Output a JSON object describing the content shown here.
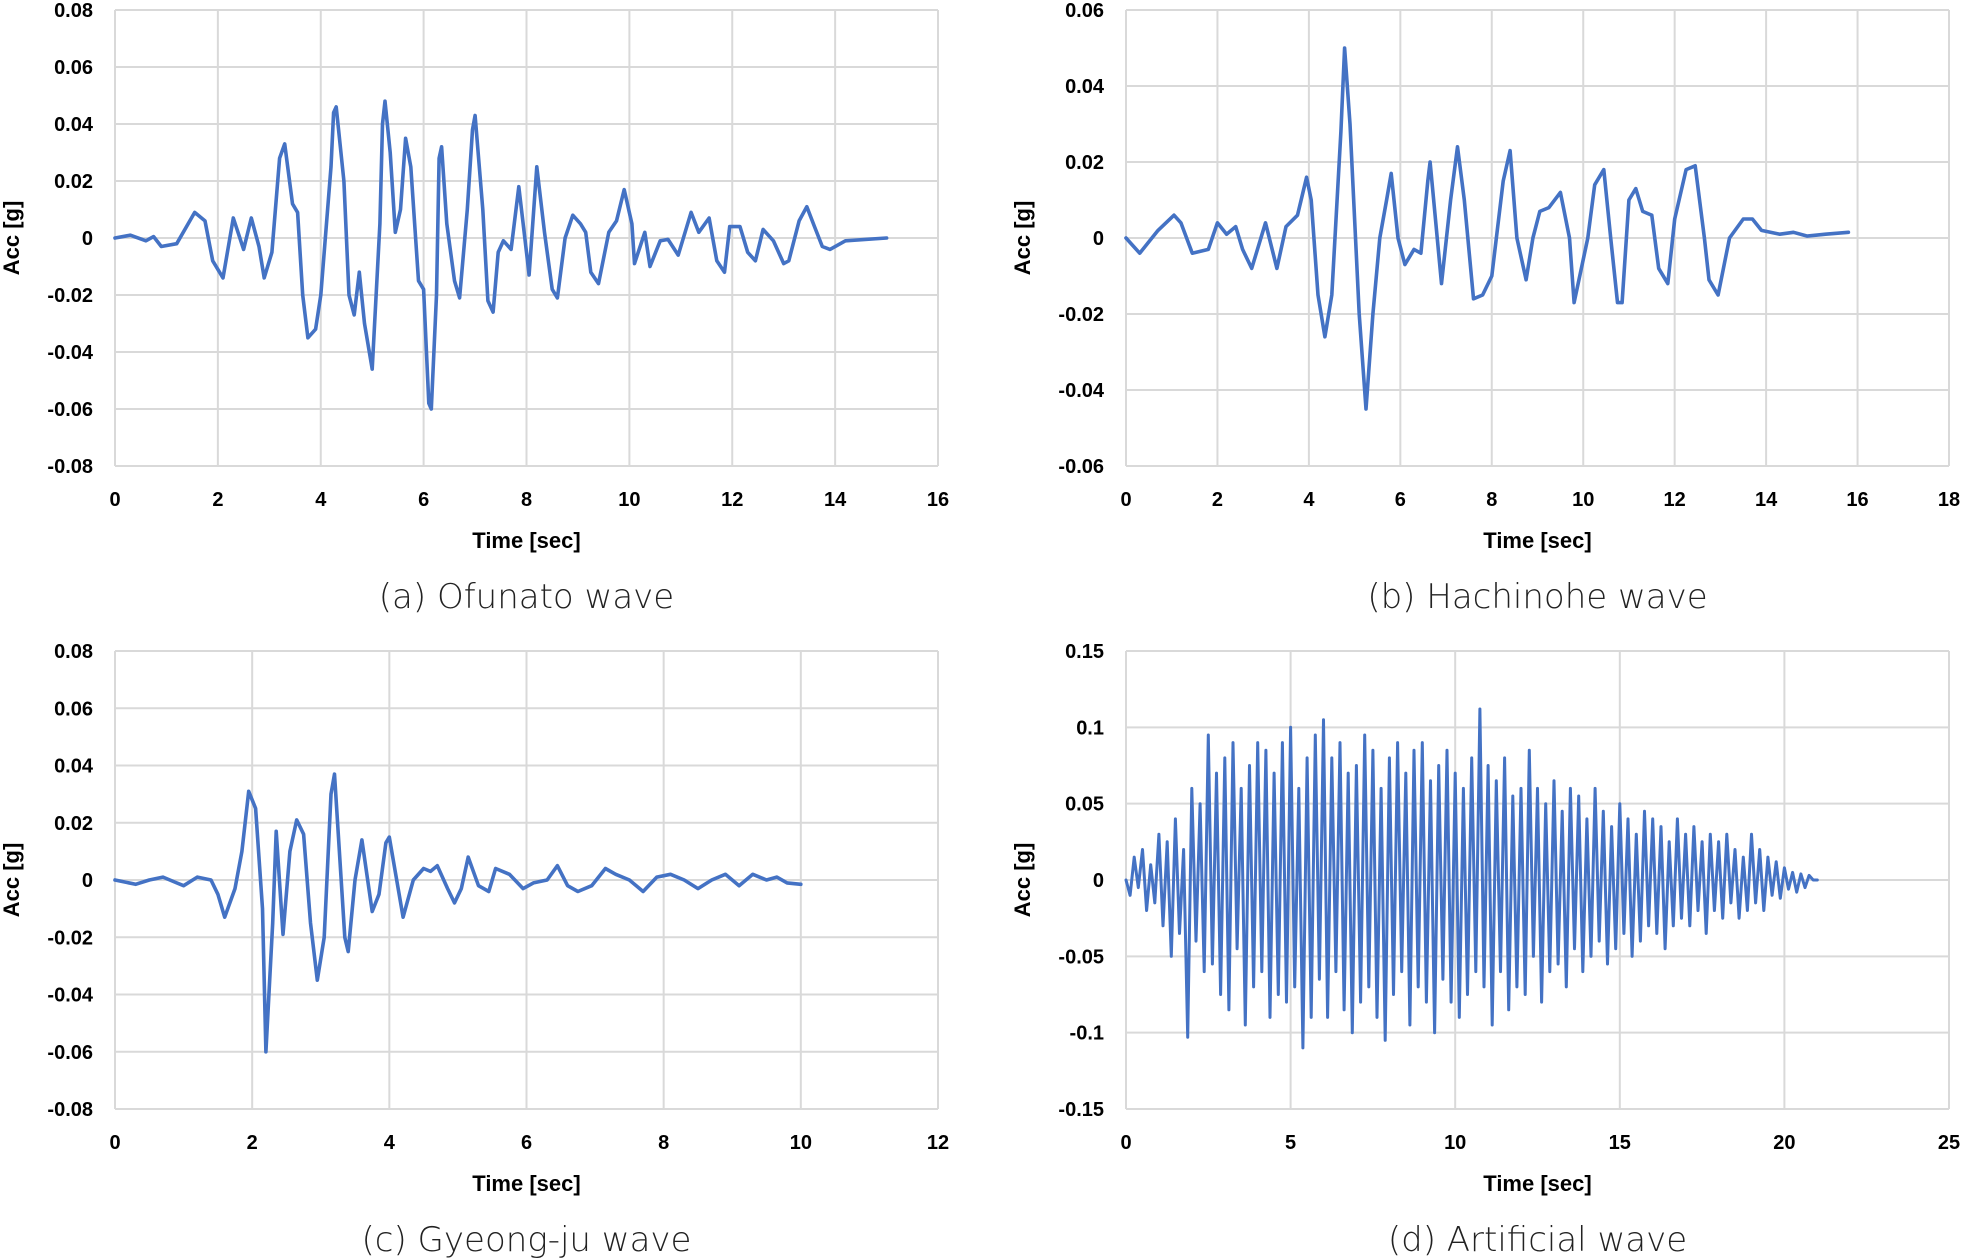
{
  "line_color": "#4472c4",
  "grid_color": "#d9d9d9",
  "chart_data": [
    {
      "type": "line",
      "caption": "(a) Ofunato wave",
      "xlabel": "Time [sec]",
      "ylabel": "Acc [g]",
      "xlim": [
        0,
        16
      ],
      "xstep": 2,
      "ylim": [
        -0.08,
        0.08
      ],
      "ystep": 0.02,
      "xticks": [
        "0",
        "2",
        "4",
        "6",
        "8",
        "10",
        "12",
        "14",
        "16"
      ],
      "yticks": [
        "-0.08",
        "-0.06",
        "-0.04",
        "-0.02",
        "0",
        "0.02",
        "0.04",
        "0.06",
        "0.08"
      ],
      "grid": true,
      "points": [
        [
          0,
          0
        ],
        [
          0.3,
          0.001
        ],
        [
          0.6,
          -0.001
        ],
        [
          0.75,
          0.0005
        ],
        [
          0.9,
          -0.003
        ],
        [
          1.2,
          -0.002
        ],
        [
          1.55,
          0.009
        ],
        [
          1.75,
          0.006
        ],
        [
          1.9,
          -0.008
        ],
        [
          2.1,
          -0.014
        ],
        [
          2.3,
          0.007
        ],
        [
          2.5,
          -0.004
        ],
        [
          2.65,
          0.007
        ],
        [
          2.8,
          -0.003
        ],
        [
          2.9,
          -0.014
        ],
        [
          3.05,
          -0.005
        ],
        [
          3.2,
          0.028
        ],
        [
          3.3,
          0.033
        ],
        [
          3.45,
          0.012
        ],
        [
          3.55,
          0.009
        ],
        [
          3.65,
          -0.02
        ],
        [
          3.75,
          -0.035
        ],
        [
          3.9,
          -0.032
        ],
        [
          4.0,
          -0.02
        ],
        [
          4.2,
          0.025
        ],
        [
          4.25,
          0.044
        ],
        [
          4.3,
          0.046
        ],
        [
          4.45,
          0.02
        ],
        [
          4.55,
          -0.02
        ],
        [
          4.65,
          -0.027
        ],
        [
          4.75,
          -0.012
        ],
        [
          4.85,
          -0.03
        ],
        [
          5.0,
          -0.046
        ],
        [
          5.15,
          0.005
        ],
        [
          5.2,
          0.04
        ],
        [
          5.25,
          0.048
        ],
        [
          5.35,
          0.03
        ],
        [
          5.45,
          0.002
        ],
        [
          5.55,
          0.01
        ],
        [
          5.65,
          0.035
        ],
        [
          5.75,
          0.025
        ],
        [
          5.9,
          -0.015
        ],
        [
          6.0,
          -0.018
        ],
        [
          6.1,
          -0.058
        ],
        [
          6.15,
          -0.06
        ],
        [
          6.25,
          -0.02
        ],
        [
          6.3,
          0.028
        ],
        [
          6.35,
          0.032
        ],
        [
          6.45,
          0.005
        ],
        [
          6.6,
          -0.015
        ],
        [
          6.7,
          -0.021
        ],
        [
          6.85,
          0.01
        ],
        [
          6.95,
          0.038
        ],
        [
          7.0,
          0.043
        ],
        [
          7.15,
          0.01
        ],
        [
          7.25,
          -0.022
        ],
        [
          7.35,
          -0.026
        ],
        [
          7.45,
          -0.005
        ],
        [
          7.55,
          -0.001
        ],
        [
          7.7,
          -0.004
        ],
        [
          7.85,
          0.018
        ],
        [
          8.0,
          -0.005
        ],
        [
          8.05,
          -0.013
        ],
        [
          8.2,
          0.025
        ],
        [
          8.35,
          0.002
        ],
        [
          8.5,
          -0.018
        ],
        [
          8.6,
          -0.021
        ],
        [
          8.75,
          0.0
        ],
        [
          8.9,
          0.008
        ],
        [
          9.05,
          0.005
        ],
        [
          9.15,
          0.002
        ],
        [
          9.25,
          -0.012
        ],
        [
          9.4,
          -0.016
        ],
        [
          9.6,
          0.002
        ],
        [
          9.75,
          0.006
        ],
        [
          9.9,
          0.017
        ],
        [
          10.05,
          0.005
        ],
        [
          10.1,
          -0.009
        ],
        [
          10.3,
          0.002
        ],
        [
          10.4,
          -0.01
        ],
        [
          10.6,
          -0.001
        ],
        [
          10.75,
          -0.0005
        ],
        [
          10.95,
          -0.006
        ],
        [
          11.2,
          0.009
        ],
        [
          11.35,
          0.002
        ],
        [
          11.55,
          0.007
        ],
        [
          11.7,
          -0.008
        ],
        [
          11.85,
          -0.012
        ],
        [
          11.95,
          0.004
        ],
        [
          12.15,
          0.004
        ],
        [
          12.3,
          -0.005
        ],
        [
          12.45,
          -0.008
        ],
        [
          12.6,
          0.003
        ],
        [
          12.8,
          -0.001
        ],
        [
          13.0,
          -0.009
        ],
        [
          13.1,
          -0.008
        ],
        [
          13.3,
          0.006
        ],
        [
          13.45,
          0.011
        ],
        [
          13.6,
          0.004
        ],
        [
          13.75,
          -0.003
        ],
        [
          13.9,
          -0.004
        ],
        [
          14.2,
          -0.001
        ],
        [
          15.0,
          0
        ]
      ]
    },
    {
      "type": "line",
      "caption": "(b) Hachinohe wave",
      "xlabel": "Time [sec]",
      "ylabel": "Acc [g]",
      "xlim": [
        0,
        18
      ],
      "xstep": 2,
      "ylim": [
        -0.06,
        0.06
      ],
      "ystep": 0.02,
      "xticks": [
        "0",
        "2",
        "4",
        "6",
        "8",
        "10",
        "12",
        "14",
        "16",
        "18"
      ],
      "yticks": [
        "-0.06",
        "-0.04",
        "-0.02",
        "0",
        "0.02",
        "0.04",
        "0.06"
      ],
      "grid": true,
      "points": [
        [
          0,
          0
        ],
        [
          0.3,
          -0.004
        ],
        [
          0.7,
          0.002
        ],
        [
          1.05,
          0.006
        ],
        [
          1.2,
          0.004
        ],
        [
          1.45,
          -0.004
        ],
        [
          1.8,
          -0.003
        ],
        [
          2.0,
          0.004
        ],
        [
          2.2,
          0.001
        ],
        [
          2.4,
          0.003
        ],
        [
          2.55,
          -0.003
        ],
        [
          2.75,
          -0.008
        ],
        [
          3.05,
          0.004
        ],
        [
          3.3,
          -0.008
        ],
        [
          3.5,
          0.003
        ],
        [
          3.75,
          0.006
        ],
        [
          3.95,
          0.016
        ],
        [
          4.05,
          0.01
        ],
        [
          4.2,
          -0.015
        ],
        [
          4.35,
          -0.026
        ],
        [
          4.5,
          -0.015
        ],
        [
          4.7,
          0.028
        ],
        [
          4.78,
          0.05
        ],
        [
          4.9,
          0.03
        ],
        [
          5.1,
          -0.02
        ],
        [
          5.25,
          -0.045
        ],
        [
          5.4,
          -0.02
        ],
        [
          5.55,
          0.0
        ],
        [
          5.7,
          0.01
        ],
        [
          5.8,
          0.017
        ],
        [
          5.95,
          0.0
        ],
        [
          6.1,
          -0.007
        ],
        [
          6.3,
          -0.003
        ],
        [
          6.45,
          -0.004
        ],
        [
          6.6,
          0.015
        ],
        [
          6.65,
          0.02
        ],
        [
          6.9,
          -0.012
        ],
        [
          7.1,
          0.01
        ],
        [
          7.25,
          0.024
        ],
        [
          7.4,
          0.01
        ],
        [
          7.6,
          -0.016
        ],
        [
          7.8,
          -0.015
        ],
        [
          8.0,
          -0.01
        ],
        [
          8.25,
          0.015
        ],
        [
          8.4,
          0.023
        ],
        [
          8.55,
          0.0
        ],
        [
          8.75,
          -0.011
        ],
        [
          8.9,
          0.0
        ],
        [
          9.05,
          0.007
        ],
        [
          9.25,
          0.008
        ],
        [
          9.5,
          0.012
        ],
        [
          9.7,
          0.0
        ],
        [
          9.8,
          -0.017
        ],
        [
          10.1,
          0.0
        ],
        [
          10.25,
          0.014
        ],
        [
          10.45,
          0.018
        ],
        [
          10.6,
          0.0
        ],
        [
          10.75,
          -0.017
        ],
        [
          10.85,
          -0.017
        ],
        [
          11.0,
          0.01
        ],
        [
          11.15,
          0.013
        ],
        [
          11.3,
          0.007
        ],
        [
          11.5,
          0.006
        ],
        [
          11.65,
          -0.008
        ],
        [
          11.85,
          -0.012
        ],
        [
          12.0,
          0.005
        ],
        [
          12.25,
          0.018
        ],
        [
          12.45,
          0.019
        ],
        [
          12.65,
          0.0
        ],
        [
          12.75,
          -0.011
        ],
        [
          12.95,
          -0.015
        ],
        [
          13.2,
          0.0
        ],
        [
          13.5,
          0.005
        ],
        [
          13.7,
          0.005
        ],
        [
          13.9,
          0.002
        ],
        [
          14.3,
          0.001
        ],
        [
          14.6,
          0.0015
        ],
        [
          14.9,
          0.0005
        ],
        [
          15.3,
          0.001
        ],
        [
          15.8,
          0.0015
        ]
      ]
    },
    {
      "type": "line",
      "caption": "(c) Gyeong-ju wave",
      "xlabel": "Time [sec]",
      "ylabel": "Acc [g]",
      "xlim": [
        0,
        12
      ],
      "xstep": 2,
      "ylim": [
        -0.08,
        0.08
      ],
      "ystep": 0.02,
      "xticks": [
        "0",
        "2",
        "4",
        "6",
        "8",
        "10",
        "12"
      ],
      "yticks": [
        "-0.08",
        "-0.06",
        "-0.04",
        "-0.02",
        "0",
        "0.02",
        "0.04",
        "0.06",
        "0.08"
      ],
      "grid": true,
      "points": [
        [
          0,
          0
        ],
        [
          0.3,
          -0.0015
        ],
        [
          0.5,
          0.0
        ],
        [
          0.7,
          0.001
        ],
        [
          0.9,
          -0.001
        ],
        [
          1.0,
          -0.002
        ],
        [
          1.2,
          0.001
        ],
        [
          1.4,
          0.0
        ],
        [
          1.5,
          -0.005
        ],
        [
          1.6,
          -0.013
        ],
        [
          1.75,
          -0.003
        ],
        [
          1.85,
          0.01
        ],
        [
          1.95,
          0.031
        ],
        [
          2.05,
          0.025
        ],
        [
          2.15,
          -0.01
        ],
        [
          2.2,
          -0.06
        ],
        [
          2.3,
          -0.015
        ],
        [
          2.35,
          0.017
        ],
        [
          2.45,
          -0.019
        ],
        [
          2.55,
          0.01
        ],
        [
          2.65,
          0.021
        ],
        [
          2.75,
          0.016
        ],
        [
          2.85,
          -0.015
        ],
        [
          2.95,
          -0.035
        ],
        [
          3.05,
          -0.02
        ],
        [
          3.15,
          0.03
        ],
        [
          3.2,
          0.037
        ],
        [
          3.35,
          -0.02
        ],
        [
          3.4,
          -0.025
        ],
        [
          3.5,
          0.0
        ],
        [
          3.6,
          0.014
        ],
        [
          3.75,
          -0.011
        ],
        [
          3.85,
          -0.005
        ],
        [
          3.95,
          0.013
        ],
        [
          4.0,
          0.015
        ],
        [
          4.2,
          -0.013
        ],
        [
          4.35,
          0.0
        ],
        [
          4.5,
          0.004
        ],
        [
          4.6,
          0.003
        ],
        [
          4.7,
          0.005
        ],
        [
          4.85,
          -0.003
        ],
        [
          4.95,
          -0.008
        ],
        [
          5.05,
          -0.003
        ],
        [
          5.15,
          0.008
        ],
        [
          5.3,
          -0.002
        ],
        [
          5.45,
          -0.004
        ],
        [
          5.55,
          0.004
        ],
        [
          5.75,
          0.002
        ],
        [
          5.95,
          -0.003
        ],
        [
          6.1,
          -0.001
        ],
        [
          6.3,
          0.0
        ],
        [
          6.45,
          0.005
        ],
        [
          6.6,
          -0.002
        ],
        [
          6.75,
          -0.004
        ],
        [
          6.95,
          -0.002
        ],
        [
          7.15,
          0.004
        ],
        [
          7.3,
          0.002
        ],
        [
          7.5,
          0.0
        ],
        [
          7.7,
          -0.004
        ],
        [
          7.9,
          0.001
        ],
        [
          8.1,
          0.002
        ],
        [
          8.3,
          0.0
        ],
        [
          8.5,
          -0.003
        ],
        [
          8.7,
          0.0
        ],
        [
          8.9,
          0.002
        ],
        [
          9.1,
          -0.002
        ],
        [
          9.3,
          0.002
        ],
        [
          9.5,
          0.0
        ],
        [
          9.65,
          0.001
        ],
        [
          9.8,
          -0.001
        ],
        [
          10.0,
          -0.0015
        ]
      ]
    },
    {
      "type": "line",
      "caption": "(d) Artificial wave",
      "xlabel": "Time [sec]",
      "ylabel": "Acc [g]",
      "xlim": [
        0,
        25
      ],
      "xstep": 5,
      "ylim": [
        -0.15,
        0.15
      ],
      "ystep": 0.05,
      "xticks": [
        "0",
        "5",
        "10",
        "15",
        "20",
        "25"
      ],
      "yticks": [
        "-0.15",
        "-0.1",
        "-0.05",
        "0",
        "0.05",
        "0.1",
        "0.15"
      ],
      "grid": true,
      "dt": 0.125,
      "values": [
        0,
        -0.01,
        0.015,
        -0.005,
        0.02,
        -0.02,
        0.01,
        -0.015,
        0.03,
        -0.03,
        0.025,
        -0.05,
        0.04,
        -0.035,
        0.02,
        -0.103,
        0.06,
        -0.04,
        0.05,
        -0.06,
        0.095,
        -0.055,
        0.07,
        -0.075,
        0.08,
        -0.085,
        0.09,
        -0.045,
        0.06,
        -0.095,
        0.075,
        -0.07,
        0.09,
        -0.06,
        0.085,
        -0.09,
        0.07,
        -0.075,
        0.09,
        -0.08,
        0.1,
        -0.07,
        0.06,
        -0.11,
        0.08,
        -0.09,
        0.095,
        -0.065,
        0.105,
        -0.09,
        0.08,
        -0.06,
        0.09,
        -0.085,
        0.07,
        -0.1,
        0.075,
        -0.08,
        0.095,
        -0.07,
        0.085,
        -0.09,
        0.06,
        -0.105,
        0.08,
        -0.075,
        0.09,
        -0.06,
        0.07,
        -0.095,
        0.085,
        -0.07,
        0.09,
        -0.08,
        0.065,
        -0.1,
        0.075,
        -0.065,
        0.085,
        -0.08,
        0.07,
        -0.09,
        0.06,
        -0.075,
        0.08,
        -0.06,
        0.112,
        -0.07,
        0.075,
        -0.095,
        0.065,
        -0.06,
        0.08,
        -0.085,
        0.055,
        -0.07,
        0.06,
        -0.075,
        0.085,
        -0.05,
        0.06,
        -0.08,
        0.05,
        -0.06,
        0.065,
        -0.055,
        0.045,
        -0.07,
        0.06,
        -0.045,
        0.055,
        -0.06,
        0.04,
        -0.05,
        0.06,
        -0.04,
        0.045,
        -0.055,
        0.035,
        -0.045,
        0.05,
        -0.035,
        0.04,
        -0.05,
        0.03,
        -0.04,
        0.045,
        -0.03,
        0.04,
        -0.035,
        0.035,
        -0.045,
        0.025,
        -0.03,
        0.04,
        -0.025,
        0.03,
        -0.03,
        0.035,
        -0.02,
        0.025,
        -0.035,
        0.03,
        -0.02,
        0.025,
        -0.025,
        0.03,
        -0.015,
        0.02,
        -0.025,
        0.015,
        -0.02,
        0.03,
        -0.015,
        0.02,
        -0.02,
        0.015,
        -0.01,
        0.012,
        -0.012,
        0.008,
        -0.006,
        0.005,
        -0.008,
        0.004,
        -0.005,
        0.003,
        0,
        0
      ]
    }
  ]
}
